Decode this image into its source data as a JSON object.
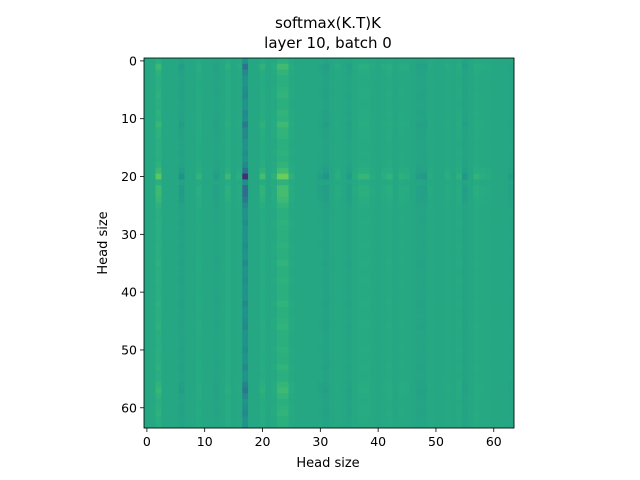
{
  "chart_data": {
    "type": "heatmap",
    "title": "softmax(K.T)K",
    "subtitle": "layer 10, batch 0",
    "xlabel": "Head size",
    "ylabel": "Head size",
    "xlim": [
      -0.5,
      63.5
    ],
    "ylim": [
      63.5,
      -0.5
    ],
    "grid": false,
    "rows": 64,
    "cols": 64,
    "colormap": "viridis",
    "xticks": [
      0,
      10,
      20,
      30,
      40,
      50,
      60
    ],
    "yticks": [
      0,
      10,
      20,
      30,
      40,
      50,
      60
    ],
    "base_value": 0.6,
    "col_deviation": [
      0,
      0.01,
      0.14,
      0,
      0,
      0,
      -0.1,
      0,
      0,
      0.05,
      0,
      0,
      -0.05,
      0,
      0.07,
      0,
      0.03,
      -0.45,
      0,
      0,
      0.09,
      0,
      0.04,
      0.17,
      0.17,
      0.04,
      0,
      0,
      0,
      0,
      -0.04,
      -0.08,
      0,
      0.03,
      0,
      -0.05,
      0.02,
      0.06,
      0.06,
      0.02,
      0,
      0.03,
      0.05,
      0,
      0.04,
      0.03,
      0,
      -0.05,
      -0.06,
      0.02,
      0,
      0,
      0.03,
      0,
      0.04,
      -0.07,
      0,
      0.05,
      0.03,
      0.02,
      0,
      0,
      0,
      -0.04
    ],
    "row_weight": [
      0.2,
      0.5,
      0.3,
      0.2,
      0.2,
      0.25,
      0.3,
      0.2,
      0.2,
      0.3,
      0.25,
      0.45,
      0.3,
      0.3,
      0.2,
      0.2,
      0.25,
      0.2,
      0.3,
      0.5,
      1.0,
      0.25,
      0.55,
      0.55,
      0.45,
      0.3,
      0.2,
      0.2,
      0.25,
      0.2,
      0.2,
      0.2,
      0.25,
      0.2,
      0.2,
      0.3,
      0.2,
      0.2,
      0.25,
      0.2,
      0.2,
      0.2,
      0.3,
      0.2,
      0.2,
      0.25,
      0.3,
      0.2,
      0.2,
      0.2,
      0.25,
      0.2,
      0.2,
      0.3,
      0.2,
      0.2,
      0.35,
      0.45,
      0.3,
      0.2,
      0.25,
      0.3,
      0.2,
      0.2
    ]
  }
}
